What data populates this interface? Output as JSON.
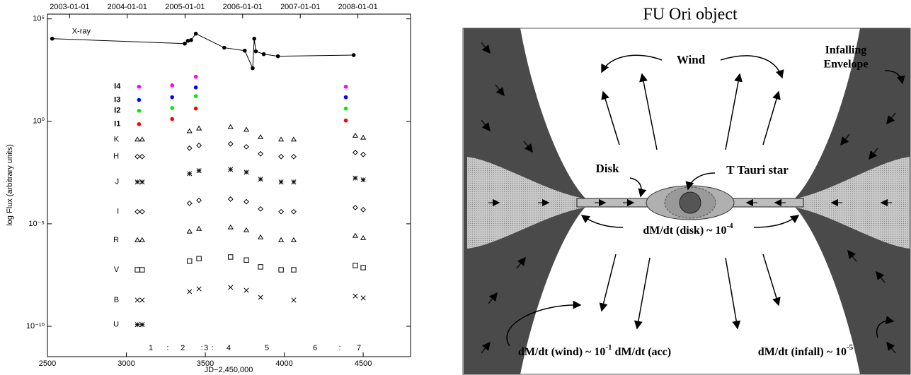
{
  "chart_data": {
    "type": "scatter",
    "log_y": true,
    "xlabel": "JD−2,450,000",
    "ylabel": "log Flux (arbitrary units)",
    "xlim": [
      2500,
      4800
    ],
    "xticks": [
      2500,
      3000,
      3500,
      4000,
      4500
    ],
    "x2ticks": [
      {
        "value": 2640.5,
        "label": "2003-01-01"
      },
      {
        "value": 3005.5,
        "label": "2004-01-01"
      },
      {
        "value": 3371.5,
        "label": "2005-01-01"
      },
      {
        "value": 3736.5,
        "label": "2006-01-01"
      },
      {
        "value": 4101.5,
        "label": "2007-01-01"
      },
      {
        "value": 4466.5,
        "label": "2008-01-01"
      }
    ],
    "ylim": [
      3.3e-12,
      170000
    ],
    "yticks": [
      {
        "value": 100000,
        "label": "10⁵"
      },
      {
        "value": 1,
        "label": "10⁰"
      },
      {
        "value": 1e-05,
        "label": "10⁻⁵"
      },
      {
        "value": 1e-10,
        "label": "10⁻¹⁰"
      }
    ],
    "series": [
      {
        "name": "X-ray",
        "color": "#000000",
        "marker": "circle",
        "line": true,
        "x": [
          2530,
          3370,
          3390,
          3410,
          3440,
          3620,
          3750,
          3800,
          3810,
          3820,
          3870,
          3960,
          4440
        ],
        "values": [
          10800,
          6200,
          8500,
          9200,
          18900,
          3900,
          2800,
          390,
          10800,
          2600,
          1900,
          1500,
          1700
        ]
      },
      {
        "name": "I4",
        "color": "#ff00ff",
        "marker": "circle",
        "x": [
          3080,
          3290,
          3440,
          4390
        ],
        "values": [
          49,
          57,
          150,
          49
        ]
      },
      {
        "name": "I3",
        "color": "#0000ff",
        "marker": "circle",
        "x": [
          3080,
          3290,
          3440,
          4390
        ],
        "values": [
          11,
          15,
          45,
          15
        ]
      },
      {
        "name": "I2",
        "color": "#00ee00",
        "marker": "circle",
        "x": [
          3080,
          3290,
          3440,
          4390
        ],
        "values": [
          3.3,
          4.5,
          17,
          4.2
        ]
      },
      {
        "name": "I1",
        "color": "#ff0000",
        "marker": "circle",
        "x": [
          3080,
          3290,
          3440,
          4390
        ],
        "values": [
          0.73,
          1.3,
          4.2,
          1.1
        ]
      },
      {
        "name": "K",
        "color": "#000000",
        "marker": "triangle",
        "x": [
          3070,
          3100,
          3400,
          3460,
          3660,
          3760,
          3850,
          3980,
          4060,
          4450,
          4500
        ],
        "values": [
          0.13,
          0.13,
          0.33,
          0.45,
          0.53,
          0.39,
          0.17,
          0.13,
          0.13,
          0.2,
          0.16
        ]
      },
      {
        "name": "H",
        "color": "#000000",
        "marker": "diamond",
        "x": [
          3070,
          3100,
          3400,
          3460,
          3660,
          3760,
          3850,
          3980,
          4060,
          4450,
          4500
        ],
        "values": [
          0.019,
          0.019,
          0.049,
          0.067,
          0.079,
          0.057,
          0.026,
          0.019,
          0.019,
          0.03,
          0.024
        ]
      },
      {
        "name": "J",
        "color": "#000000",
        "marker": "asterisk",
        "x": [
          3070,
          3100,
          3400,
          3460,
          3660,
          3760,
          3850,
          3980,
          4060,
          4450,
          4500
        ],
        "values": [
          0.0011,
          0.0011,
          0.0028,
          0.0039,
          0.0045,
          0.0033,
          0.0015,
          0.0011,
          0.0011,
          0.0017,
          0.0014
        ]
      },
      {
        "name": "I",
        "color": "#000000",
        "marker": "diamond",
        "x": [
          3070,
          3100,
          3400,
          3460,
          3660,
          3760,
          3850,
          3980,
          4060,
          4450,
          4500
        ],
        "values": [
          3.9e-05,
          3.9e-05,
          0.0001,
          0.00014,
          0.00016,
          0.00012,
          5.3e-05,
          3.9e-05,
          3.9e-05,
          6.2e-05,
          4.9e-05
        ]
      },
      {
        "name": "R",
        "color": "#000000",
        "marker": "triangle",
        "x": [
          3070,
          3100,
          3400,
          3460,
          3660,
          3760,
          3850,
          3980,
          4060,
          4450,
          4500
        ],
        "values": [
          1.6e-06,
          1.6e-06,
          4.2e-06,
          5.7e-06,
          6.7e-06,
          4.9e-06,
          2.2e-06,
          1.6e-06,
          1.6e-06,
          2.6e-06,
          2e-06
        ]
      },
      {
        "name": "V",
        "color": "#000000",
        "marker": "square",
        "x": [
          3070,
          3100,
          3400,
          3460,
          3660,
          3760,
          3850,
          3980,
          4060,
          4450,
          4500
        ],
        "values": [
          5.7e-08,
          5.7e-08,
          1.5e-07,
          2e-07,
          2.4e-07,
          1.7e-07,
          7.9e-08,
          5.7e-08,
          5.7e-08,
          9.2e-08,
          7.3e-08
        ]
      },
      {
        "name": "B",
        "color": "#000000",
        "marker": "x",
        "x": [
          3070,
          3100,
          3400,
          3460,
          3660,
          3760,
          3850,
          3980,
          4060,
          4450,
          4500
        ],
        "values": [
          1.9e-09,
          1.9e-09,
          4.9e-09,
          6.7e-09,
          7.9e-09,
          5.7e-09,
          2.6e-09,
          null,
          1.9e-09,
          3e-09,
          2.4e-09
        ]
      },
      {
        "name": "U",
        "color": "#000000",
        "marker": "asterisk",
        "x": [
          3070,
          3100
        ],
        "values": [
          1.2e-10,
          1.2e-10
        ]
      }
    ],
    "epochs": {
      "labels": [
        "1",
        "2",
        "3",
        "4",
        "5",
        "6",
        "7"
      ],
      "x": [
        3155,
        3357,
        3505,
        3648,
        3890,
        4195,
        4473
      ]
    },
    "epoch_separators": {
      "label": ":",
      "x": [
        3262,
        3478,
        3545,
        4352
      ]
    }
  },
  "diagram": {
    "title": "FU Ori object",
    "wind": "Wind",
    "envelope": [
      "Infalling",
      "Envelope"
    ],
    "disk": "Disk",
    "star": "T Tauri star",
    "disk_rate": {
      "text": "dM/dt (disk) ~ 10",
      "sup": "-4"
    },
    "wind_rate": {
      "text": "dM/dt (wind) ~ 10",
      "sup": "-1",
      "after": " dM/dt (acc)"
    },
    "infall_rate": {
      "text": "dM/dt (infall) ~ 10",
      "sup": "-5"
    }
  }
}
